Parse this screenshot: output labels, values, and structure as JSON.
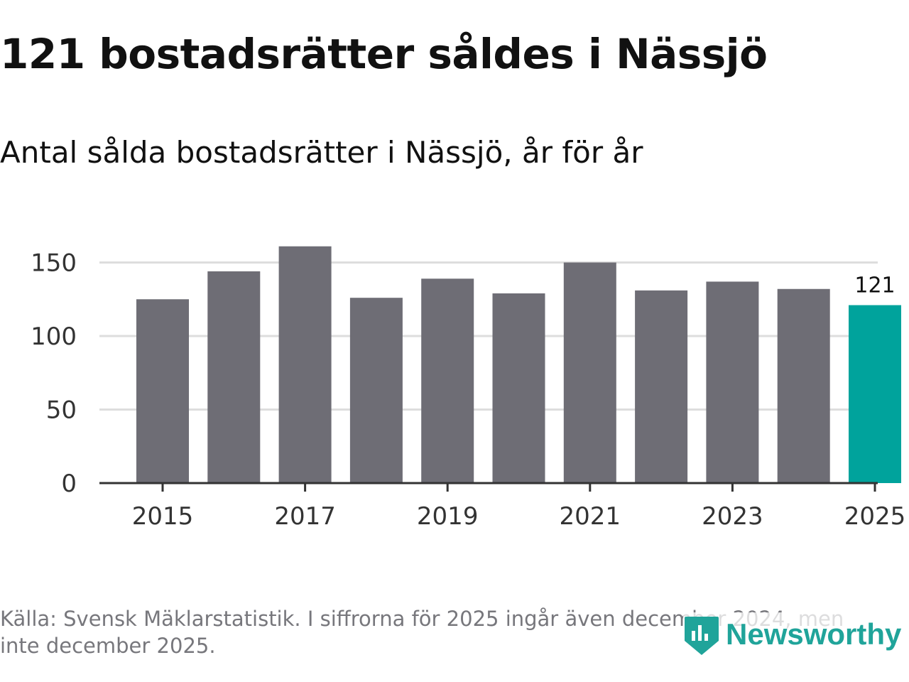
{
  "header": {
    "title": "121 bostadsrätter såldes i Nässjö",
    "subtitle": "Antal sålda bostadsrätter i Nässjö, år för år"
  },
  "footer": {
    "source": "Källa: Svensk Mäklarstatistik. I siffrorna för 2025 ingår även december 2024, men inte december 2025.",
    "brand": "Newsworthy"
  },
  "colors": {
    "bar": "#6e6d75",
    "highlight": "#00a39c",
    "grid": "#dddddd",
    "axis": "#333333",
    "brand": "#20a49a"
  },
  "chart_data": {
    "type": "bar",
    "title": "Antal sålda bostadsrätter i Nässjö, år för år",
    "xlabel": "",
    "ylabel": "",
    "categories": [
      "2015",
      "2016",
      "2017",
      "2018",
      "2019",
      "2020",
      "2021",
      "2022",
      "2023",
      "2024",
      "2025"
    ],
    "values": [
      125,
      144,
      161,
      126,
      139,
      129,
      150,
      131,
      137,
      132,
      121
    ],
    "highlight_index": 10,
    "highlight_label": "121",
    "ylim": [
      0,
      160
    ],
    "yticks": [
      0,
      50,
      100,
      150
    ],
    "xtick_labels": [
      "2015",
      "2017",
      "2019",
      "2021",
      "2023",
      "2025"
    ],
    "grid": true,
    "legend": "none"
  }
}
